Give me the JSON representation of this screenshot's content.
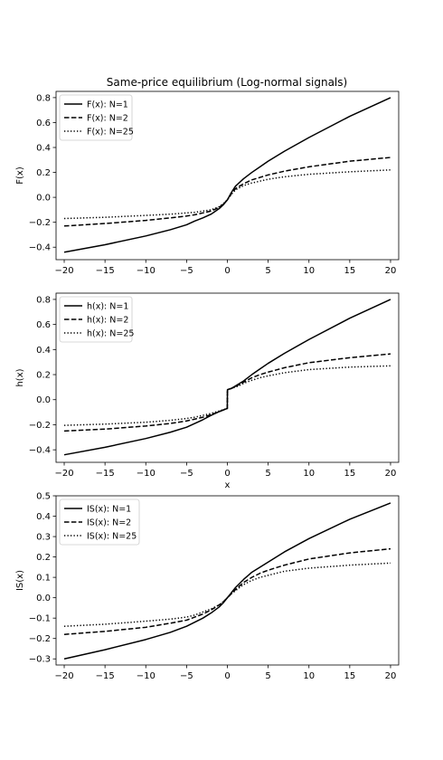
{
  "title": "Same-price equilibrium (Log-normal signals)",
  "chart_data": [
    {
      "type": "line",
      "ylabel": "F(x)",
      "xlabel": "",
      "xlim": [
        -21,
        21
      ],
      "ylim": [
        -0.5,
        0.85
      ],
      "xticks": [
        -20,
        -15,
        -10,
        -5,
        0,
        5,
        10,
        15,
        20
      ],
      "yticks": [
        -0.4,
        -0.2,
        0.0,
        0.2,
        0.4,
        0.6,
        0.8
      ],
      "ytick_labels": [
        "−0.4",
        "−0.2",
        "0.0",
        "0.2",
        "0.4",
        "0.6",
        "0.8"
      ],
      "legend_position": "top-left",
      "series": [
        {
          "name": "F(x): N=1",
          "style": "solid",
          "x": [
            -20,
            -15,
            -10,
            -7,
            -5,
            -4,
            -3,
            -2,
            -1,
            -0.5,
            0,
            0.5,
            1,
            2,
            3,
            4,
            5,
            7,
            10,
            15,
            20
          ],
          "y": [
            -0.44,
            -0.38,
            -0.31,
            -0.26,
            -0.22,
            -0.19,
            -0.165,
            -0.135,
            -0.09,
            -0.06,
            -0.02,
            0.04,
            0.09,
            0.15,
            0.2,
            0.245,
            0.29,
            0.37,
            0.48,
            0.65,
            0.8
          ]
        },
        {
          "name": "F(x): N=2",
          "style": "dashed",
          "x": [
            -20,
            -15,
            -10,
            -7,
            -5,
            -4,
            -3,
            -2,
            -1,
            -0.5,
            0,
            0.5,
            1,
            2,
            3,
            4,
            5,
            7,
            10,
            15,
            20
          ],
          "y": [
            -0.23,
            -0.21,
            -0.185,
            -0.165,
            -0.15,
            -0.14,
            -0.125,
            -0.11,
            -0.08,
            -0.055,
            -0.02,
            0.03,
            0.07,
            0.11,
            0.14,
            0.16,
            0.18,
            0.21,
            0.245,
            0.29,
            0.32
          ]
        },
        {
          "name": "F(x): N=25",
          "style": "dotted",
          "x": [
            -20,
            -15,
            -10,
            -7,
            -5,
            -4,
            -3,
            -2,
            -1,
            -0.5,
            0,
            0.5,
            1,
            2,
            3,
            4,
            5,
            7,
            10,
            15,
            20
          ],
          "y": [
            -0.17,
            -0.16,
            -0.145,
            -0.135,
            -0.125,
            -0.12,
            -0.11,
            -0.1,
            -0.075,
            -0.05,
            -0.02,
            0.025,
            0.06,
            0.095,
            0.115,
            0.13,
            0.145,
            0.165,
            0.185,
            0.205,
            0.22
          ]
        }
      ]
    },
    {
      "type": "line",
      "ylabel": "h(x)",
      "xlabel": "x",
      "xlim": [
        -21,
        21
      ],
      "ylim": [
        -0.5,
        0.85
      ],
      "xticks": [
        -20,
        -15,
        -10,
        -5,
        0,
        5,
        10,
        15,
        20
      ],
      "yticks": [
        -0.4,
        -0.2,
        0.0,
        0.2,
        0.4,
        0.6,
        0.8
      ],
      "ytick_labels": [
        "−0.4",
        "−0.2",
        "0.0",
        "0.2",
        "0.4",
        "0.6",
        "0.8"
      ],
      "legend_position": "top-left",
      "series": [
        {
          "name": "h(x): N=1",
          "style": "solid",
          "x": [
            -20,
            -15,
            -10,
            -7,
            -5,
            -4,
            -3,
            -2,
            -1,
            -0.01,
            0.01,
            0.5,
            1,
            2,
            3,
            4,
            5,
            7,
            10,
            15,
            20
          ],
          "y": [
            -0.44,
            -0.38,
            -0.31,
            -0.26,
            -0.22,
            -0.19,
            -0.16,
            -0.125,
            -0.095,
            -0.07,
            0.08,
            0.09,
            0.11,
            0.15,
            0.2,
            0.245,
            0.29,
            0.37,
            0.48,
            0.65,
            0.8
          ]
        },
        {
          "name": "h(x): N=2",
          "style": "dashed",
          "x": [
            -20,
            -15,
            -10,
            -7,
            -5,
            -4,
            -3,
            -2,
            -1,
            -0.01,
            0.01,
            0.5,
            1,
            2,
            3,
            4,
            5,
            7,
            10,
            15,
            20
          ],
          "y": [
            -0.25,
            -0.235,
            -0.21,
            -0.19,
            -0.17,
            -0.155,
            -0.14,
            -0.12,
            -0.095,
            -0.07,
            0.08,
            0.09,
            0.105,
            0.14,
            0.175,
            0.2,
            0.22,
            0.255,
            0.295,
            0.335,
            0.365
          ]
        },
        {
          "name": "h(x): N=25",
          "style": "dotted",
          "x": [
            -20,
            -15,
            -10,
            -7,
            -5,
            -4,
            -3,
            -2,
            -1,
            -0.01,
            0.01,
            0.5,
            1,
            2,
            3,
            4,
            5,
            7,
            10,
            15,
            20
          ],
          "y": [
            -0.205,
            -0.195,
            -0.18,
            -0.165,
            -0.15,
            -0.14,
            -0.125,
            -0.11,
            -0.09,
            -0.07,
            0.08,
            0.09,
            0.1,
            0.13,
            0.155,
            0.175,
            0.19,
            0.215,
            0.24,
            0.26,
            0.27
          ]
        }
      ]
    },
    {
      "type": "line",
      "ylabel": "IS(x)",
      "xlabel": "",
      "xlim": [
        -21,
        21
      ],
      "ylim": [
        -0.33,
        0.5
      ],
      "xticks": [
        -20,
        -15,
        -10,
        -5,
        0,
        5,
        10,
        15,
        20
      ],
      "yticks": [
        -0.3,
        -0.2,
        -0.1,
        0.0,
        0.1,
        0.2,
        0.3,
        0.4,
        0.5
      ],
      "ytick_labels": [
        "−0.3",
        "−0.2",
        "−0.1",
        "0.0",
        "0.1",
        "0.2",
        "0.3",
        "0.4",
        "0.5"
      ],
      "legend_position": "top-left",
      "series": [
        {
          "name": "IS(x): N=1",
          "style": "solid",
          "x": [
            -20,
            -15,
            -10,
            -7,
            -5,
            -4,
            -3,
            -2,
            -1,
            -0.5,
            0,
            0.5,
            1,
            2,
            3,
            4,
            5,
            7,
            10,
            15,
            20
          ],
          "y": [
            -0.3,
            -0.255,
            -0.205,
            -0.17,
            -0.14,
            -0.12,
            -0.1,
            -0.075,
            -0.045,
            -0.025,
            0.0,
            0.025,
            0.05,
            0.09,
            0.125,
            0.15,
            0.175,
            0.225,
            0.29,
            0.385,
            0.465
          ]
        },
        {
          "name": "IS(x): N=2",
          "style": "dashed",
          "x": [
            -20,
            -15,
            -10,
            -7,
            -5,
            -4,
            -3,
            -2,
            -1,
            -0.5,
            0,
            0.5,
            1,
            2,
            3,
            4,
            5,
            7,
            10,
            15,
            20
          ],
          "y": [
            -0.18,
            -0.165,
            -0.145,
            -0.125,
            -0.11,
            -0.095,
            -0.08,
            -0.06,
            -0.035,
            -0.02,
            0.0,
            0.02,
            0.04,
            0.075,
            0.1,
            0.12,
            0.135,
            0.16,
            0.19,
            0.22,
            0.24
          ]
        },
        {
          "name": "IS(x): N=25",
          "style": "dotted",
          "x": [
            -20,
            -15,
            -10,
            -7,
            -5,
            -4,
            -3,
            -2,
            -1,
            -0.5,
            0,
            0.5,
            1,
            2,
            3,
            4,
            5,
            7,
            10,
            15,
            20
          ],
          "y": [
            -0.14,
            -0.13,
            -0.115,
            -0.105,
            -0.095,
            -0.085,
            -0.07,
            -0.055,
            -0.035,
            -0.02,
            0.0,
            0.02,
            0.035,
            0.065,
            0.085,
            0.1,
            0.11,
            0.13,
            0.145,
            0.16,
            0.17
          ]
        }
      ]
    }
  ]
}
